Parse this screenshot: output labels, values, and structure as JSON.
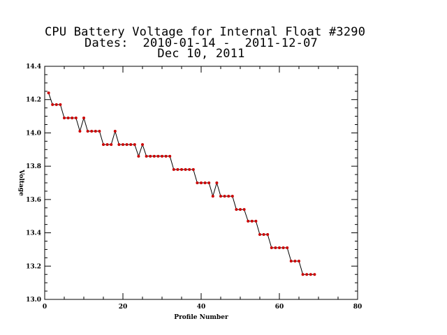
{
  "chart_data": {
    "type": "line",
    "title": "CPU Battery Voltage for Internal Float #3290",
    "subtitle": "Dates:  2010-01-14 -  2011-12-07",
    "date_line": "Dec 10, 2011",
    "xlabel": "Profile Number",
    "ylabel": "Voltage",
    "xlim": [
      0,
      80
    ],
    "ylim": [
      13.0,
      14.4
    ],
    "xticks": [
      0,
      20,
      40,
      60,
      80
    ],
    "xtick_labels": [
      "0",
      "20",
      "40",
      "60",
      "80"
    ],
    "yticks": [
      13.0,
      13.2,
      13.4,
      13.6,
      13.8,
      14.0,
      14.2,
      14.4
    ],
    "ytick_labels": [
      "13.0",
      "13.2",
      "13.4",
      "13.6",
      "13.8",
      "14.0",
      "14.2",
      "14.4"
    ],
    "grid": false,
    "line_color": "#000000",
    "marker_color": "#cc0000",
    "x": [
      1,
      2,
      3,
      4,
      5,
      6,
      7,
      8,
      9,
      10,
      11,
      12,
      13,
      14,
      15,
      16,
      17,
      18,
      19,
      20,
      21,
      22,
      23,
      24,
      25,
      26,
      27,
      28,
      29,
      30,
      31,
      32,
      33,
      34,
      35,
      36,
      37,
      38,
      39,
      40,
      41,
      42,
      43,
      44,
      45,
      46,
      47,
      48,
      49,
      50,
      51,
      52,
      53,
      54,
      55,
      56,
      57,
      58,
      59,
      60,
      61,
      62,
      63,
      64,
      65,
      66,
      67,
      68,
      69
    ],
    "y": [
      14.24,
      14.17,
      14.17,
      14.17,
      14.09,
      14.09,
      14.09,
      14.09,
      14.01,
      14.09,
      14.01,
      14.01,
      14.01,
      14.01,
      13.93,
      13.93,
      13.93,
      14.01,
      13.93,
      13.93,
      13.93,
      13.93,
      13.93,
      13.86,
      13.93,
      13.86,
      13.86,
      13.86,
      13.86,
      13.86,
      13.86,
      13.86,
      13.78,
      13.78,
      13.78,
      13.78,
      13.78,
      13.78,
      13.7,
      13.7,
      13.7,
      13.7,
      13.62,
      13.7,
      13.62,
      13.62,
      13.62,
      13.62,
      13.54,
      13.54,
      13.54,
      13.47,
      13.47,
      13.47,
      13.39,
      13.39,
      13.39,
      13.31,
      13.31,
      13.31,
      13.31,
      13.31,
      13.23,
      13.23,
      13.23,
      13.15,
      13.15,
      13.15,
      13.15
    ]
  }
}
